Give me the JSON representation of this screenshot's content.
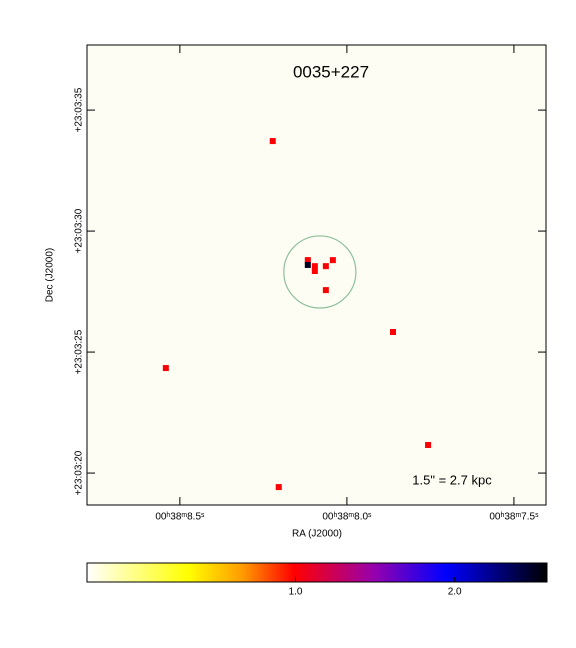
{
  "chart_data": {
    "type": "scatter",
    "title": "0035+227",
    "x_label": "RA (J2000)",
    "y_label": "Dec (J2000)",
    "x": [
      8.222,
      8.117,
      8.117,
      8.096,
      8.096,
      8.063,
      8.042,
      8.063,
      7.862,
      8.542,
      7.757,
      8.204
    ],
    "values": [
      33.72,
      28.8,
      28.6,
      28.55,
      28.35,
      28.55,
      28.8,
      27.56,
      25.83,
      24.34,
      21.16,
      19.42
    ],
    "counts": [
      1,
      1,
      2.5,
      1,
      1,
      1,
      1,
      1,
      1,
      1,
      1,
      1
    ],
    "xlim": [
      8.778,
      7.404
    ],
    "ylim": [
      18.68,
      37.69
    ],
    "xticks": [
      {
        "value": 8.5,
        "label": "00ʰ38ᵐ8.5ˢ"
      },
      {
        "value": 8.0,
        "label": "00ʰ38ᵐ8.0ˢ"
      },
      {
        "value": 7.5,
        "label": "00ʰ38ᵐ7.5ˢ"
      }
    ],
    "yticks": [
      {
        "value": 35,
        "label": "+23:03:35"
      },
      {
        "value": 30,
        "label": "+23:03:30"
      },
      {
        "value": 25,
        "label": "+23:03:25"
      },
      {
        "value": 20,
        "label": "+23:03:20"
      }
    ],
    "region": {
      "x": 8.081,
      "y": 28.31,
      "radius": 1.49,
      "color": "#8fbf9f"
    },
    "annotation": "1.5\" = 2.7 kpc",
    "colorbar": {
      "lim": [
        -0.31,
        2.58
      ],
      "ticks": [
        {
          "value": 1,
          "label": "1.0"
        },
        {
          "value": 2,
          "label": "2.0"
        }
      ]
    }
  }
}
